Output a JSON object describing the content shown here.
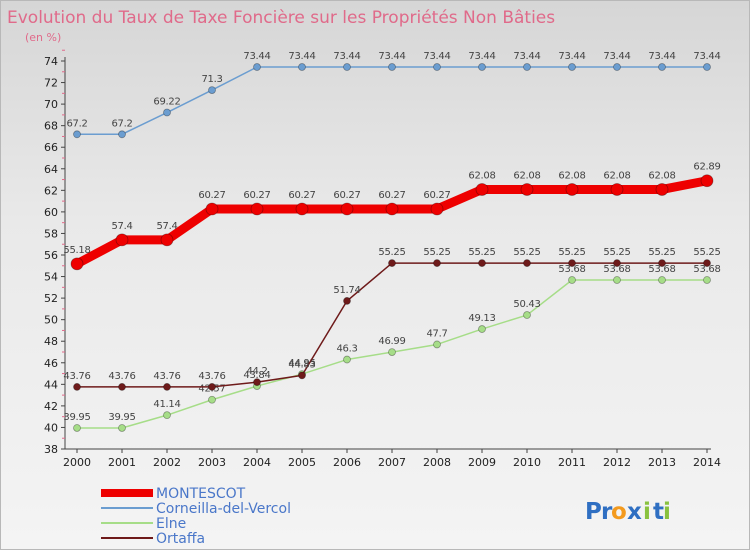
{
  "chart_data": {
    "type": "line",
    "title": "Evolution du Taux de Taxe Foncière sur les Propriétés Non Bâties",
    "subtitle": "(en %)",
    "x": [
      2000,
      2001,
      2002,
      2003,
      2004,
      2005,
      2006,
      2007,
      2008,
      2009,
      2010,
      2011,
      2012,
      2013,
      2014
    ],
    "ylim": [
      38,
      74
    ],
    "yticks": [
      38,
      40,
      42,
      44,
      46,
      48,
      50,
      52,
      54,
      56,
      58,
      60,
      62,
      64,
      66,
      68,
      70,
      72,
      74
    ],
    "grid": false,
    "legend_position": "bottom-left",
    "series": [
      {
        "name": "MONTESCOT",
        "color": "#ee0000",
        "width": 9,
        "marker": 6,
        "values": [
          55.18,
          57.4,
          57.4,
          60.27,
          60.27,
          60.27,
          60.27,
          60.27,
          60.27,
          62.08,
          62.08,
          62.08,
          62.08,
          62.08,
          62.89
        ],
        "labels": [
          "55.18",
          "57.4",
          "57.4",
          "60.27",
          "60.27",
          "60.27",
          "60.27",
          "60.27",
          "60.27",
          "62.08",
          "62.08",
          "62.08",
          "62.08",
          "62.08",
          "62.89"
        ]
      },
      {
        "name": "Corneilla-del-Vercol",
        "color": "#6b9dd0",
        "width": 1.5,
        "marker": 3.5,
        "values": [
          67.2,
          67.2,
          69.22,
          71.3,
          73.44,
          73.44,
          73.44,
          73.44,
          73.44,
          73.44,
          73.44,
          73.44,
          73.44,
          73.44,
          73.44
        ],
        "labels": [
          "67.2",
          "67.2",
          "69.22",
          "71.3",
          "73.44",
          "73.44",
          "73.44",
          "73.44",
          "73.44",
          "73.44",
          "73.44",
          "73.44",
          "73.44",
          "73.44",
          "73.44"
        ]
      },
      {
        "name": "Elne",
        "color": "#a6dd88",
        "width": 1.5,
        "marker": 3.5,
        "values": [
          39.95,
          39.95,
          41.14,
          42.57,
          43.84,
          44.95,
          46.3,
          46.99,
          47.7,
          49.13,
          50.43,
          53.68,
          53.68,
          53.68,
          53.68
        ],
        "labels": [
          "39.95",
          "39.95",
          "41.14",
          "42.57",
          "43.84",
          "44.95",
          "46.3",
          "46.99",
          "47.7",
          "49.13",
          "50.43",
          "53.68",
          "53.68",
          "53.68",
          "53.68"
        ]
      },
      {
        "name": "Ortaffa",
        "color": "#6e1a1a",
        "width": 1.5,
        "marker": 3.5,
        "values": [
          43.76,
          43.76,
          43.76,
          43.76,
          44.2,
          44.83,
          51.74,
          55.25,
          55.25,
          55.25,
          55.25,
          55.25,
          55.25,
          55.25,
          55.25
        ],
        "labels": [
          "43.76",
          "43.76",
          "43.76",
          "43.76",
          "44.2",
          "44.83",
          "51.74",
          "55.25",
          "55.25",
          "55.25",
          "55.25",
          "55.25",
          "55.25",
          "55.25",
          "55.25"
        ]
      }
    ]
  },
  "logo": {
    "letters": [
      "P",
      "r",
      "o",
      "x",
      "i",
      "t",
      "i"
    ],
    "colors": [
      "#2f6fc2",
      "#2f6fc2",
      "#f39a1e",
      "#2f6fc2",
      "#89c23f",
      "#2f6fc2",
      "#89c23f"
    ]
  }
}
